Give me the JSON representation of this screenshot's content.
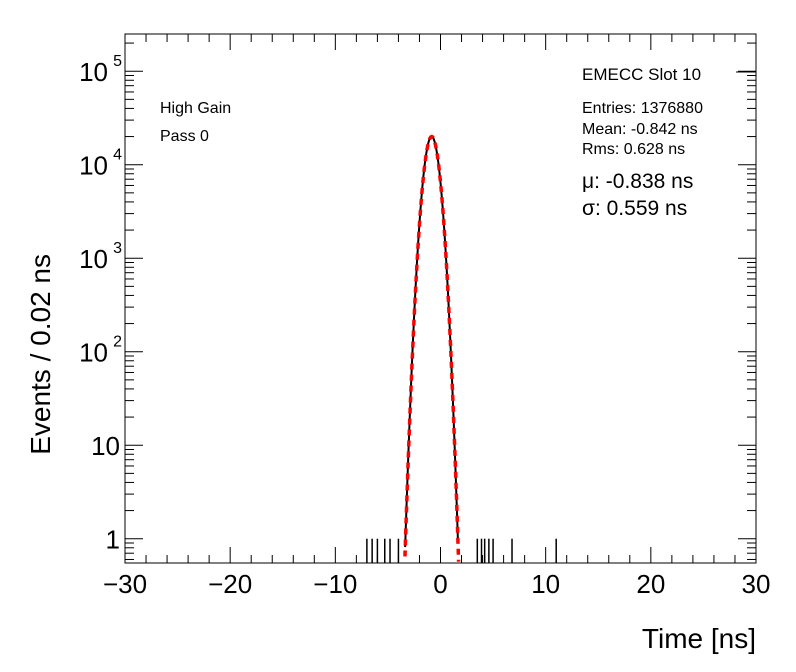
{
  "chart_data": {
    "type": "histogram",
    "title": "EMECC Slot 10",
    "xlabel": "Time [ns]",
    "ylabel": "Events / 0.02 ns",
    "xlim": [
      -30,
      30
    ],
    "ylim": [
      0.55,
      250000
    ],
    "yscale": "log",
    "x_ticks": [
      -30,
      -20,
      -10,
      0,
      10,
      20,
      30
    ],
    "x_tick_labels": [
      "−30",
      "−20",
      "−10",
      "0",
      "10",
      "20",
      "30"
    ],
    "y_ticks": [
      {
        "value": 1,
        "base": "1",
        "exp": ""
      },
      {
        "value": 10,
        "base": "10",
        "exp": ""
      },
      {
        "value": 100,
        "base": "10",
        "exp": "2"
      },
      {
        "value": 1000,
        "base": "10",
        "exp": "3"
      },
      {
        "value": 10000,
        "base": "10",
        "exp": "4"
      },
      {
        "value": 100000,
        "base": "10",
        "exp": "5"
      }
    ],
    "labels_left": [
      "High Gain",
      "Pass 0"
    ],
    "stats": {
      "entries": "Entries: 1376880",
      "mean": "Mean: -0.842 ns",
      "rms": "Rms: 0.628 ns"
    },
    "fit": {
      "mu_label": "μ: -0.838 ns",
      "sigma_label": "σ: 0.559 ns",
      "mu": -0.838,
      "sigma": 0.559,
      "peak": 20000,
      "x_range": [
        -3.5,
        1.9
      ],
      "color": "#ff0000"
    },
    "histogram": {
      "peak_mean": -0.842,
      "peak_height": 20000,
      "left_tail_slope": 1.9,
      "right_tail_slope": 2.3,
      "core_sigma": 0.56,
      "sparse_bins": [
        -7.0,
        -6.5,
        -6.0,
        -5.3,
        -4.8,
        -4.0,
        3.5,
        3.9,
        4.2,
        4.6,
        5.0,
        6.8,
        11.0
      ],
      "color": "#000000"
    }
  }
}
